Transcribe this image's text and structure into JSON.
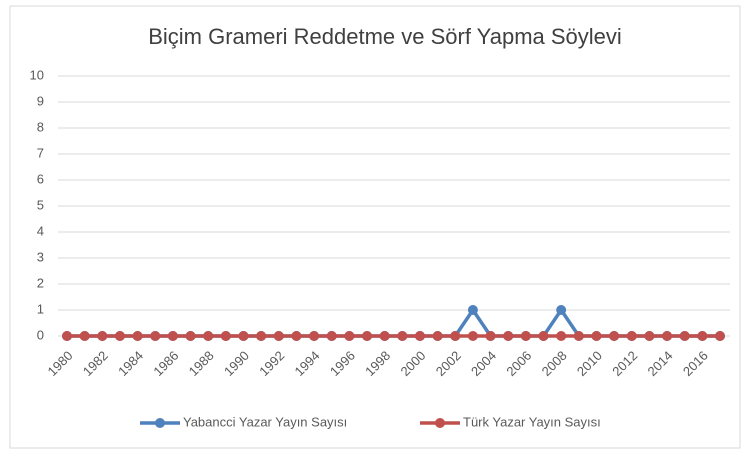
{
  "chart_data": {
    "type": "line",
    "title": "Biçim Grameri Reddetme ve Sörf Yapma Söylevi",
    "categories": [
      "1980",
      null,
      "1982",
      null,
      "1984",
      null,
      "1986",
      null,
      "1988",
      null,
      "1990",
      null,
      "1992",
      null,
      "1994",
      null,
      "1996",
      null,
      "1998",
      null,
      "2000",
      null,
      "2002",
      null,
      "2004",
      null,
      "2006",
      null,
      "2008",
      null,
      "2010",
      null,
      "2012",
      null,
      "2014",
      null,
      "2016",
      null
    ],
    "series": [
      {
        "name": "Yabancci Yazar Yayın Sayısı",
        "color": "#4f81bd",
        "values": [
          0,
          0,
          0,
          0,
          0,
          0,
          0,
          0,
          0,
          0,
          0,
          0,
          0,
          0,
          0,
          0,
          0,
          0,
          0,
          0,
          0,
          0,
          0,
          1,
          0,
          0,
          0,
          0,
          1,
          0,
          0,
          0,
          0,
          0,
          0,
          0,
          0,
          0
        ]
      },
      {
        "name": "Türk Yazar Yayın Sayısı",
        "color": "#c0504d",
        "values": [
          0,
          0,
          0,
          0,
          0,
          0,
          0,
          0,
          0,
          0,
          0,
          0,
          0,
          0,
          0,
          0,
          0,
          0,
          0,
          0,
          0,
          0,
          0,
          0,
          0,
          0,
          0,
          0,
          0,
          0,
          0,
          0,
          0,
          0,
          0,
          0,
          0,
          0
        ]
      }
    ],
    "ylim": [
      0,
      10
    ],
    "yticks": [
      0,
      1,
      2,
      3,
      4,
      5,
      6,
      7,
      8,
      9,
      10
    ],
    "grid": true,
    "legend": "bottom"
  }
}
